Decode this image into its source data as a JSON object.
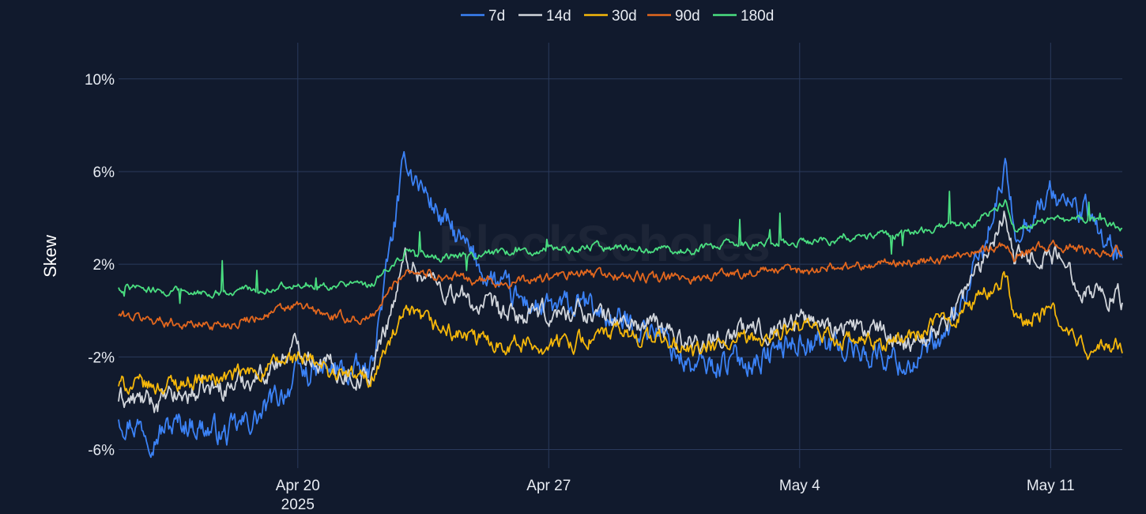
{
  "watermark": "BlockScholes",
  "chart_data": {
    "type": "line",
    "ylabel": "Skew",
    "xlabel": "",
    "y_unit": "%",
    "ylim": [
      -6.8,
      11.7
    ],
    "yticks": [
      10,
      6,
      2,
      -2,
      -6
    ],
    "ytick_labels": [
      "10%",
      "6%",
      "2%",
      "-2%",
      "-6%"
    ],
    "x_range": [
      "2025-04-15",
      "2025-05-13"
    ],
    "xticks": [
      {
        "date": "2025-04-20",
        "label": "Apr 20",
        "sublabel": "2025"
      },
      {
        "date": "2025-04-27",
        "label": "Apr 27",
        "sublabel": ""
      },
      {
        "date": "2025-05-04",
        "label": "May 4",
        "sublabel": ""
      },
      {
        "date": "2025-05-11",
        "label": "May 11",
        "sublabel": ""
      }
    ],
    "grid": true,
    "legend_position": "top-center",
    "series": [
      {
        "name": "7d",
        "color": "#3b82f6",
        "noise": 0.55,
        "points": [
          [
            "2025-04-15",
            -4.5
          ],
          [
            "2025-04-16",
            -5.2
          ],
          [
            "2025-04-17",
            -4.8
          ],
          [
            "2025-04-18",
            -5.4
          ],
          [
            "2025-04-19",
            -4.5
          ],
          [
            "2025-04-20",
            -2.8
          ],
          [
            "2025-04-21",
            -2.6
          ],
          [
            "2025-04-22",
            -2.8
          ],
          [
            "2025-04-23",
            6.5
          ],
          [
            "2025-04-24",
            4.0
          ],
          [
            "2025-04-25",
            2.0
          ],
          [
            "2025-04-26",
            0.5
          ],
          [
            "2025-04-27",
            0.0
          ],
          [
            "2025-04-28",
            0.2
          ],
          [
            "2025-04-29",
            -0.5
          ],
          [
            "2025-04-30",
            -0.8
          ],
          [
            "2025-05-01",
            -2.5
          ],
          [
            "2025-05-02",
            -2.2
          ],
          [
            "2025-05-03",
            -2.0
          ],
          [
            "2025-05-04",
            -1.2
          ],
          [
            "2025-05-05",
            -1.5
          ],
          [
            "2025-05-06",
            -1.8
          ],
          [
            "2025-05-07",
            -2.3
          ],
          [
            "2025-05-08",
            -1.5
          ],
          [
            "2025-05-09",
            2.0
          ],
          [
            "2025-05-09T18:00",
            6.0
          ],
          [
            "2025-05-10",
            3.5
          ],
          [
            "2025-05-11",
            5.0
          ],
          [
            "2025-05-12",
            4.2
          ],
          [
            "2025-05-13",
            2.0
          ]
        ]
      },
      {
        "name": "14d",
        "color": "#d1d5db",
        "noise": 0.45,
        "points": [
          [
            "2025-04-15",
            -3.8
          ],
          [
            "2025-04-16",
            -4.0
          ],
          [
            "2025-04-17",
            -3.6
          ],
          [
            "2025-04-18",
            -3.3
          ],
          [
            "2025-04-19",
            -2.7
          ],
          [
            "2025-04-20",
            -1.5
          ],
          [
            "2025-04-21",
            -2.5
          ],
          [
            "2025-04-22",
            -3.0
          ],
          [
            "2025-04-23",
            2.2
          ],
          [
            "2025-04-24",
            1.0
          ],
          [
            "2025-04-25",
            0.2
          ],
          [
            "2025-04-26",
            -0.3
          ],
          [
            "2025-04-27",
            -0.2
          ],
          [
            "2025-04-28",
            0.0
          ],
          [
            "2025-04-29",
            -0.5
          ],
          [
            "2025-04-30",
            -0.7
          ],
          [
            "2025-05-01",
            -1.4
          ],
          [
            "2025-05-02",
            -1.0
          ],
          [
            "2025-05-03",
            -0.8
          ],
          [
            "2025-05-04",
            -0.3
          ],
          [
            "2025-05-05",
            -0.6
          ],
          [
            "2025-05-06",
            -0.9
          ],
          [
            "2025-05-07",
            -1.3
          ],
          [
            "2025-05-08",
            -0.7
          ],
          [
            "2025-05-09",
            1.8
          ],
          [
            "2025-05-09T18:00",
            4.5
          ],
          [
            "2025-05-10",
            2.3
          ],
          [
            "2025-05-11",
            2.5
          ],
          [
            "2025-05-12",
            1.0
          ],
          [
            "2025-05-13",
            0.5
          ]
        ]
      },
      {
        "name": "30d",
        "color": "#f5b70a",
        "noise": 0.35,
        "points": [
          [
            "2025-04-15",
            -3.2
          ],
          [
            "2025-04-16",
            -3.3
          ],
          [
            "2025-04-17",
            -3.0
          ],
          [
            "2025-04-18",
            -2.9
          ],
          [
            "2025-04-19",
            -2.6
          ],
          [
            "2025-04-20",
            -2.0
          ],
          [
            "2025-04-21",
            -2.7
          ],
          [
            "2025-04-22",
            -3.0
          ],
          [
            "2025-04-23",
            -0.2
          ],
          [
            "2025-04-24",
            -0.8
          ],
          [
            "2025-04-25",
            -1.3
          ],
          [
            "2025-04-26",
            -1.4
          ],
          [
            "2025-04-27",
            -1.5
          ],
          [
            "2025-04-28",
            -1.2
          ],
          [
            "2025-04-29",
            -1.0
          ],
          [
            "2025-04-30",
            -1.2
          ],
          [
            "2025-05-01",
            -1.8
          ],
          [
            "2025-05-02",
            -1.5
          ],
          [
            "2025-05-03",
            -1.2
          ],
          [
            "2025-05-04",
            -0.8
          ],
          [
            "2025-05-05",
            -1.2
          ],
          [
            "2025-05-06",
            -1.5
          ],
          [
            "2025-05-07",
            -1.2
          ],
          [
            "2025-05-08",
            -0.5
          ],
          [
            "2025-05-09",
            0.5
          ],
          [
            "2025-05-09T18:00",
            1.5
          ],
          [
            "2025-05-10",
            -0.5
          ],
          [
            "2025-05-11",
            0.0
          ],
          [
            "2025-05-12",
            -1.8
          ],
          [
            "2025-05-13",
            -1.5
          ]
        ]
      },
      {
        "name": "90d",
        "color": "#e2671e",
        "noise": 0.2,
        "points": [
          [
            "2025-04-15",
            -0.2
          ],
          [
            "2025-04-16",
            -0.4
          ],
          [
            "2025-04-17",
            -0.6
          ],
          [
            "2025-04-18",
            -0.6
          ],
          [
            "2025-04-19",
            -0.2
          ],
          [
            "2025-04-20",
            0.2
          ],
          [
            "2025-04-21",
            -0.3
          ],
          [
            "2025-04-22",
            -0.4
          ],
          [
            "2025-04-23",
            1.8
          ],
          [
            "2025-04-24",
            1.5
          ],
          [
            "2025-04-25",
            1.3
          ],
          [
            "2025-04-26",
            1.2
          ],
          [
            "2025-04-27",
            1.4
          ],
          [
            "2025-04-28",
            1.6
          ],
          [
            "2025-04-29",
            1.5
          ],
          [
            "2025-04-30",
            1.4
          ],
          [
            "2025-05-01",
            1.4
          ],
          [
            "2025-05-02",
            1.6
          ],
          [
            "2025-05-03",
            1.7
          ],
          [
            "2025-05-04",
            1.7
          ],
          [
            "2025-05-05",
            1.9
          ],
          [
            "2025-05-06",
            2.0
          ],
          [
            "2025-05-07",
            2.1
          ],
          [
            "2025-05-08",
            2.2
          ],
          [
            "2025-05-09",
            2.7
          ],
          [
            "2025-05-09T18:00",
            2.8
          ],
          [
            "2025-05-10",
            2.4
          ],
          [
            "2025-05-11",
            2.8
          ],
          [
            "2025-05-12",
            2.6
          ],
          [
            "2025-05-13",
            2.5
          ]
        ]
      },
      {
        "name": "180d",
        "color": "#4ade80",
        "noise": 0.15,
        "points": [
          [
            "2025-04-15",
            1.0
          ],
          [
            "2025-04-16",
            0.9
          ],
          [
            "2025-04-17",
            0.8
          ],
          [
            "2025-04-18",
            0.8
          ],
          [
            "2025-04-19",
            0.9
          ],
          [
            "2025-04-20",
            1.2
          ],
          [
            "2025-04-21",
            1.1
          ],
          [
            "2025-04-22",
            1.0
          ],
          [
            "2025-04-23",
            2.5
          ],
          [
            "2025-04-24",
            2.3
          ],
          [
            "2025-04-25",
            2.4
          ],
          [
            "2025-04-26",
            2.5
          ],
          [
            "2025-04-27",
            2.6
          ],
          [
            "2025-04-28",
            2.8
          ],
          [
            "2025-04-29",
            2.7
          ],
          [
            "2025-04-30",
            2.6
          ],
          [
            "2025-05-01",
            2.6
          ],
          [
            "2025-05-02",
            2.9
          ],
          [
            "2025-05-03",
            2.9
          ],
          [
            "2025-05-04",
            3.0
          ],
          [
            "2025-05-05",
            3.0
          ],
          [
            "2025-05-06",
            3.2
          ],
          [
            "2025-05-07",
            3.3
          ],
          [
            "2025-05-08",
            3.6
          ],
          [
            "2025-05-09",
            3.8
          ],
          [
            "2025-05-09T18:00",
            4.8
          ],
          [
            "2025-05-10",
            3.6
          ],
          [
            "2025-05-11",
            3.9
          ],
          [
            "2025-05-12",
            3.9
          ],
          [
            "2025-05-13",
            3.6
          ]
        ]
      }
    ]
  }
}
